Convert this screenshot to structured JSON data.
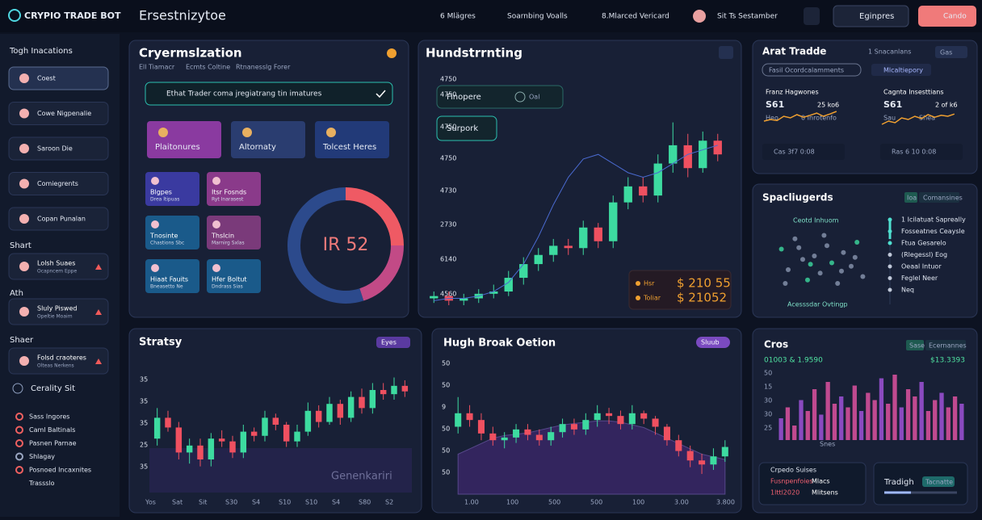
{
  "header": {
    "brand": "CRYPIO TRADE BOT",
    "title": "Ersestnizytoe",
    "nav": [
      "6 Mlägres",
      "Soarnbing Voalls",
      "8.Mlarced Vericard",
      "Sit Ts Sestamber"
    ],
    "buttons": [
      "Eginpres",
      "Cando"
    ]
  },
  "sidebar": {
    "section1": "Togh Inacations",
    "items": [
      "Coest",
      "Cowe Nigpenalie",
      "Saroon Die",
      "Comiegrents",
      "Copan Punalan"
    ],
    "section2": "Shart",
    "item2": [
      "Lolsh Suaes",
      "Ocapncem Eppe"
    ],
    "section3": "Ath",
    "item3": [
      "Sluly Piswed",
      "Opeltie Moaim"
    ],
    "section4": "Shaer",
    "item4": [
      "Folsd craoteres",
      "Olteas Nerkens"
    ],
    "link": "Cerality Sit",
    "list": [
      "Sass Ingores",
      "Caml Baltinals",
      "Pasnen Parnae",
      "Shlagay",
      "Posnoed Incaxnites",
      "Trassslo"
    ]
  },
  "optim": {
    "title": "Cryermslzation",
    "tabs": [
      "Ell Tiamacr",
      "Ecmts Coltine",
      "Rtnanesslg Forer"
    ],
    "search": "Ethat Trader coma jregiatrang tin imatures",
    "cards": [
      "Plaitonures",
      "Altornaty",
      "Tolcest Heres"
    ],
    "tiles": [
      [
        "Blgpes",
        "Drea ltipuas"
      ],
      [
        "Itsr Fosnds",
        "Ryt Inarasest"
      ],
      [
        "Tnosinte",
        "Chastions Sbc"
      ],
      [
        "Thslcin",
        "Marnirg Sxlas"
      ],
      [
        "Hiaat Fauits",
        "Bneasetto Ne"
      ],
      [
        "Hfer Boltut",
        "Dndrass Sias"
      ]
    ],
    "donut": {
      "label": "IR 52",
      "values": [
        25,
        20,
        55
      ],
      "colors": [
        "#ef5a64",
        "#c24a86",
        "#2c4a8c"
      ]
    }
  },
  "main": {
    "title": "Hundstrrnting",
    "boxes": [
      "Finopere",
      "Oal",
      "Surpork"
    ],
    "ylabels": [
      "4750",
      "4750",
      "4750",
      "4750",
      "4730",
      "2730",
      "6140",
      "4560"
    ],
    "legend": [
      [
        "Hsr",
        "$ 210 55"
      ],
      [
        "Toliar",
        "$ 21052"
      ]
    ],
    "open": [
      3,
      4,
      2,
      3,
      5,
      6,
      12,
      18,
      22,
      26,
      25,
      34,
      28,
      45,
      52,
      48,
      62,
      70,
      60,
      72
    ],
    "close": [
      4,
      2,
      3,
      5,
      6,
      12,
      18,
      22,
      26,
      25,
      34,
      28,
      45,
      52,
      48,
      62,
      70,
      60,
      72,
      66
    ],
    "high": [
      6,
      6,
      5,
      7,
      9,
      15,
      21,
      25,
      29,
      29,
      37,
      36,
      48,
      56,
      56,
      66,
      80,
      75,
      76,
      75
    ],
    "low": [
      1,
      0,
      0,
      1,
      3,
      4,
      9,
      15,
      19,
      22,
      22,
      25,
      25,
      42,
      45,
      45,
      58,
      56,
      58,
      63
    ],
    "line": [
      2,
      3,
      3,
      4,
      6,
      10,
      18,
      30,
      44,
      56,
      64,
      66,
      62,
      58,
      56,
      58,
      62,
      66,
      68,
      70
    ],
    "ylim": [
      0,
      100
    ]
  },
  "trade": {
    "title": "Arat Tradde",
    "count": "1 Snacanlans",
    "select": "Gas",
    "pill": "Fasil Ocordcalamments",
    "pill2": "Mlcaltiepory",
    "boxes": [
      {
        "head": "Franz Hagwones",
        "price": "S61",
        "change": "25 ko6",
        "a": "Heo",
        "b": "0 Inrotenfo",
        "foot": "Cas 3f7 0:08",
        "spark": [
          40,
          45,
          42,
          55,
          50,
          60,
          52,
          58,
          65,
          55,
          62,
          70
        ]
      },
      {
        "head": "Cagnta Insesttians",
        "price": "S61",
        "change": "2 of k6",
        "a": "Sau",
        "b": "Shea",
        "foot": "Ras 6 10 0:08",
        "spark": [
          30,
          40,
          35,
          50,
          45,
          55,
          48,
          60,
          52,
          58,
          55,
          62
        ]
      }
    ]
  },
  "scan": {
    "title": "Spacliugerds",
    "tabs": [
      "Ioa",
      "Comansines"
    ],
    "top": "Ceotd Inhuom",
    "bottom": "Acesssdar Ovtingp",
    "x": [
      8,
      15,
      22,
      30,
      35,
      42,
      48,
      55,
      60,
      66,
      72,
      80,
      86,
      92,
      12,
      26,
      38,
      52,
      70,
      84
    ],
    "y": [
      70,
      40,
      85,
      55,
      25,
      60,
      35,
      75,
      50,
      20,
      65,
      45,
      80,
      30,
      20,
      72,
      48,
      90,
      38,
      58
    ],
    "list": [
      "1 Icilatuat Sapreally",
      "Fosseatnes Ceaysle",
      "Ftua Gesarelo",
      "(Rlegessl) Eog",
      "Oeaal Intuor",
      "Feglel Neer",
      "Neq"
    ]
  },
  "strategy": {
    "title": "Stratsy",
    "badge": "Eyes",
    "watermark": "Genenkariri",
    "ylabels": [
      "35",
      "35",
      "35",
      "25",
      "35"
    ],
    "xlabels": [
      "Yos",
      "Sat",
      "Sit",
      "S30",
      "S4",
      "S10",
      "S10",
      "S4",
      "S80",
      "S2"
    ],
    "open": [
      40,
      55,
      48,
      30,
      35,
      25,
      40,
      38,
      30,
      45,
      42,
      55,
      50,
      38,
      45,
      60,
      52,
      65,
      55,
      70,
      62,
      75,
      72,
      78
    ],
    "close": [
      55,
      48,
      30,
      35,
      25,
      40,
      38,
      30,
      45,
      42,
      55,
      50,
      38,
      45,
      60,
      52,
      65,
      55,
      70,
      62,
      75,
      72,
      78,
      74
    ],
    "high": [
      62,
      60,
      52,
      40,
      40,
      44,
      46,
      42,
      50,
      48,
      60,
      58,
      52,
      50,
      66,
      64,
      70,
      68,
      74,
      76,
      80,
      80,
      84,
      82
    ],
    "low": [
      35,
      45,
      25,
      22,
      20,
      20,
      34,
      26,
      26,
      38,
      38,
      46,
      34,
      34,
      42,
      48,
      50,
      50,
      52,
      58,
      58,
      68,
      68,
      70
    ],
    "ylim": [
      0,
      100
    ]
  },
  "hugh": {
    "title": "Hugh Broak Oetion",
    "badge": "Sluub",
    "ylabels": [
      "50",
      "50",
      "9",
      "50",
      "50",
      "50"
    ],
    "xlabels": [
      "1.00",
      "100",
      "500",
      "500",
      "100",
      "3.00",
      "3.800"
    ],
    "open": [
      50,
      60,
      55,
      45,
      40,
      42,
      48,
      44,
      40,
      46,
      52,
      48,
      55,
      60,
      58,
      52,
      60,
      56,
      50,
      40,
      32,
      25,
      22,
      28
    ],
    "close": [
      60,
      55,
      45,
      40,
      42,
      48,
      44,
      40,
      46,
      52,
      48,
      55,
      60,
      58,
      52,
      60,
      56,
      50,
      40,
      32,
      25,
      22,
      28,
      35
    ],
    "high": [
      72,
      66,
      60,
      50,
      46,
      52,
      52,
      48,
      50,
      56,
      56,
      60,
      66,
      64,
      62,
      66,
      62,
      58,
      52,
      44,
      36,
      30,
      34,
      40
    ],
    "low": [
      45,
      50,
      40,
      36,
      34,
      38,
      40,
      36,
      36,
      42,
      44,
      44,
      50,
      52,
      48,
      48,
      52,
      44,
      36,
      28,
      20,
      15,
      18,
      24
    ],
    "area": [
      30,
      34,
      38,
      42,
      44,
      45,
      46,
      48,
      50,
      52,
      53,
      54,
      55,
      55,
      54,
      52,
      50,
      46,
      42,
      38,
      34,
      30,
      28,
      26
    ],
    "ylim": [
      0,
      100
    ]
  },
  "cros": {
    "title": "Cros",
    "tabs": [
      "Sase",
      "Ecernannes"
    ],
    "left": "01003 & 1.9590",
    "right": "$13.3393",
    "ylabels": [
      "50",
      "15",
      "30",
      "30",
      "25"
    ],
    "xlabel": "Snes",
    "values": [
      30,
      45,
      20,
      55,
      40,
      70,
      35,
      80,
      50,
      60,
      45,
      75,
      40,
      65,
      55,
      85,
      50,
      90,
      45,
      70,
      60,
      80,
      40,
      55,
      65,
      45,
      60,
      50
    ],
    "ylim": [
      0,
      100
    ],
    "card": [
      "Crpedo Suises",
      "Fusnpenfoies",
      "Mlacs",
      "1lttl2020",
      "Mlitsens"
    ],
    "trade": "Tradigh",
    "button": "Tacnatte"
  }
}
